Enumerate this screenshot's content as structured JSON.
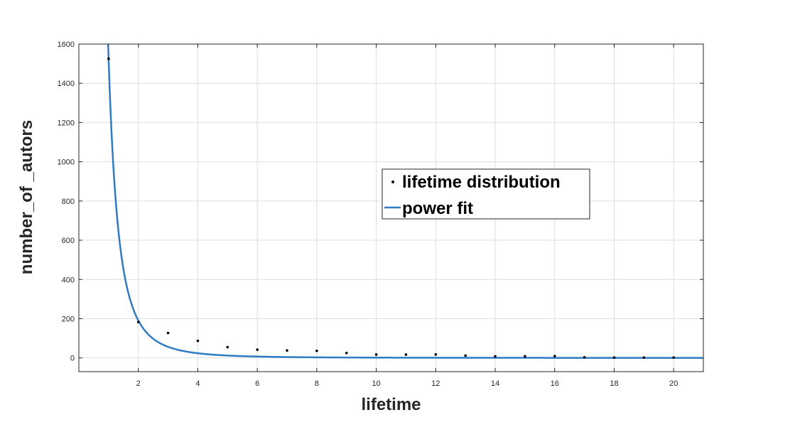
{
  "chart_data": {
    "type": "scatter",
    "title": "",
    "xlabel": "lifetime",
    "ylabel": "number_of _autors",
    "xlim": [
      0,
      21
    ],
    "ylim": [
      -70,
      1600
    ],
    "xticks": [
      2,
      4,
      6,
      8,
      10,
      12,
      14,
      16,
      18,
      20
    ],
    "yticks": [
      0,
      200,
      400,
      600,
      800,
      1000,
      1200,
      1400,
      1600
    ],
    "grid": true,
    "legend_position": "center-right",
    "series": [
      {
        "name": "lifetime distribution",
        "kind": "points",
        "color": "#000000",
        "x": [
          1,
          2,
          3,
          4,
          5,
          6,
          7,
          8,
          9,
          10,
          11,
          12,
          13,
          14,
          15,
          16,
          17,
          18,
          19,
          20
        ],
        "y": [
          1525,
          183,
          127,
          87,
          55,
          42,
          38,
          36,
          25,
          17,
          17,
          18,
          12,
          8,
          8,
          9,
          3,
          2,
          2,
          2
        ]
      },
      {
        "name": "power fit",
        "kind": "line",
        "color": "#2f7bc4",
        "a": 1525,
        "b": -3
      }
    ]
  }
}
